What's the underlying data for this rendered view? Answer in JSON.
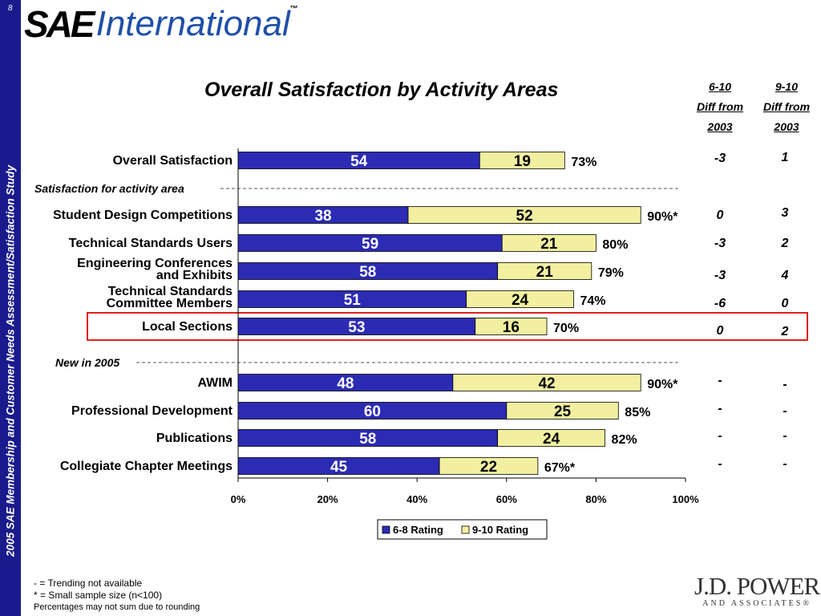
{
  "page": {
    "page_number": "8",
    "side_title": "2005 SAE Membership and Customer Needs Assessment/Satisfaction Study"
  },
  "logo": {
    "sae": "SAE",
    "international": "International",
    "tm": "™"
  },
  "diff_headers": {
    "col1": [
      "6-10",
      "Diff from",
      "2003"
    ],
    "col2": [
      "9-10",
      "Diff from",
      "2003"
    ]
  },
  "footnotes": {
    "line1": "- = Trending not available",
    "line2": "* =  Small sample size (n<100)",
    "line3": "Percentages may not sum due to rounding"
  },
  "jdpower": {
    "name": "J.D. POWER",
    "sub": "AND ASSOCIATES®"
  },
  "colors": {
    "rating_6_8": "#2b2bb4",
    "rating_9_10": "#f2f0a0",
    "sidebar": "#1a1a8c",
    "highlight": "#e02020"
  },
  "chart_data": {
    "type": "bar",
    "orientation": "horizontal",
    "stacked": true,
    "title": "Overall Satisfaction by Activity Areas",
    "xlim": [
      0,
      100
    ],
    "x_ticks": [
      "0%",
      "20%",
      "40%",
      "60%",
      "80%",
      "100%"
    ],
    "legend_position": "bottom",
    "section_labels": [
      "Satisfaction for activity area",
      "New in 2005"
    ],
    "highlighted_category": "Local Sections",
    "categories": [
      "Overall Satisfaction",
      "Student Design Competitions",
      "Technical Standards Users",
      "Engineering Conferences and Exhibits",
      "Technical Standards Committee Members",
      "Local Sections",
      "AWIM",
      "Professional Development",
      "Publications",
      "Collegiate Chapter Meetings"
    ],
    "series": [
      {
        "name": "6-8 Rating",
        "values": [
          54,
          38,
          59,
          58,
          51,
          53,
          48,
          60,
          58,
          45
        ]
      },
      {
        "name": "9-10 Rating",
        "values": [
          19,
          52,
          21,
          21,
          24,
          16,
          42,
          25,
          24,
          22
        ]
      }
    ],
    "totals": [
      "73%",
      "90%*",
      "80%",
      "79%",
      "74%",
      "70%",
      "90%*",
      "85%",
      "82%",
      "67%*"
    ],
    "diff_6_10_from_2003": [
      "-3",
      "0",
      "-3",
      "-3",
      "-6",
      "0",
      "-",
      "-",
      "-",
      "-"
    ],
    "diff_9_10_from_2003": [
      "1",
      "3",
      "2",
      "4",
      "0",
      "2",
      "-",
      "-",
      "-",
      "-"
    ]
  }
}
